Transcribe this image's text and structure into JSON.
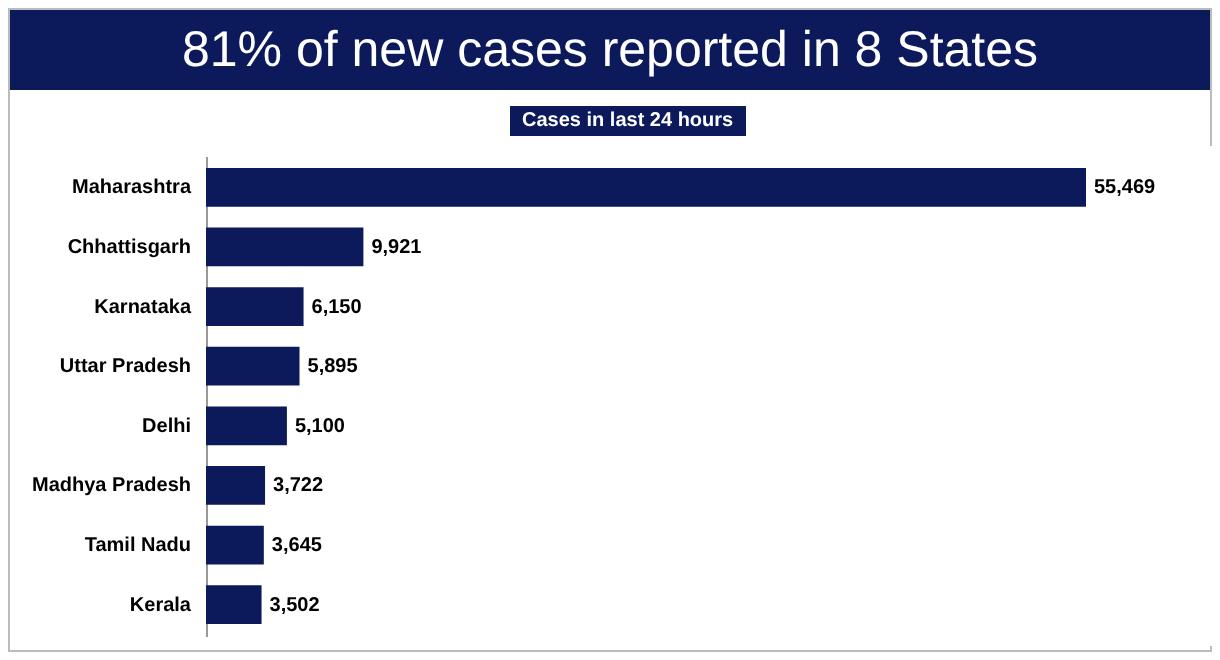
{
  "chart_data": {
    "type": "bar",
    "orientation": "horizontal",
    "title": "81% of new cases reported in 8 States",
    "subtitle": "Cases in last 24 hours",
    "categories": [
      "Maharashtra",
      "Chhattisgarh",
      "Karnataka",
      "Uttar Pradesh",
      "Delhi",
      "Madhya Pradesh",
      "Tamil Nadu",
      "Kerala"
    ],
    "values": [
      55469,
      9921,
      6150,
      5895,
      5100,
      3722,
      3645,
      3502
    ],
    "value_labels": [
      "55,469",
      "9,921",
      "6,150",
      "5,895",
      "5,100",
      "3,722",
      "3,645",
      "3,502"
    ],
    "color": "#0c1a5b",
    "grid": false
  }
}
